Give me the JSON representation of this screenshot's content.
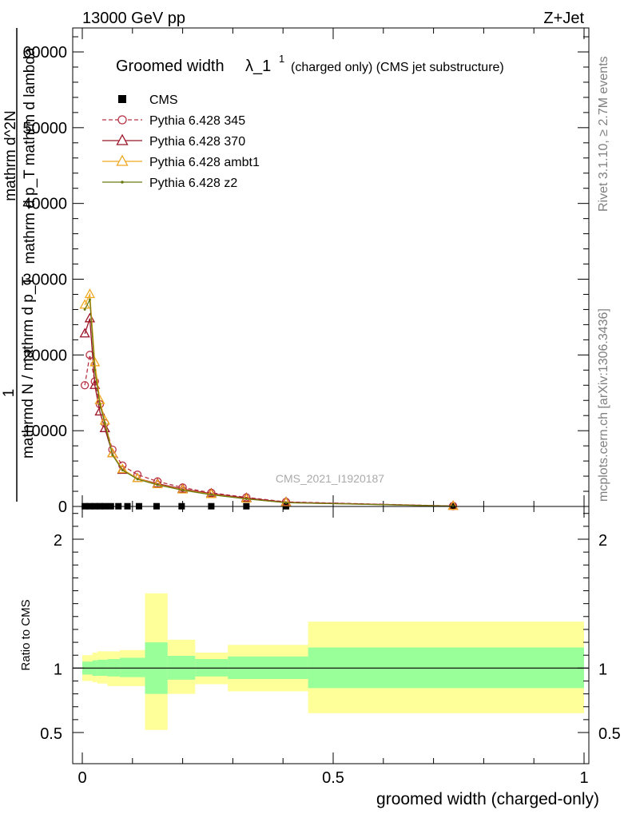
{
  "header": {
    "left": "13000 GeV pp",
    "right": "Z+Jet"
  },
  "side_labels": {
    "rivet": "Rivet 3.1.10, ≥ 2.7M events",
    "mcplots": "mcplots.cern.ch [arXiv:1306.3436]"
  },
  "watermark": "CMS_2021_I1920187",
  "chart_data": [
    {
      "type": "line",
      "title": "Groomed width",
      "title_symbol": "λ_1",
      "title_sup": "1",
      "title_suffix": "(charged only) (CMS jet substructure)",
      "ylabel_lines": [
        "1",
        "mathrmd N / mathrm d p_T",
        "mathrm d p_T mathrm d lambda",
        "mathrm d^2N"
      ],
      "ylabel_numerator": "1",
      "ylabel_denominator": "mathrmd N / mathrm d p_T",
      "ylabel_inner_numerator": "mathrm d^2N",
      "ylabel_inner_denominator": "mathrm d p_T mathrm d lambda",
      "xlim": [
        0,
        1
      ],
      "ylim": [
        0,
        60000
      ],
      "y_ticks": [
        0,
        10000,
        20000,
        30000,
        40000,
        50000,
        60000
      ],
      "y_tick_labels": [
        "0",
        "10000",
        "20000",
        "30000",
        "40000",
        "50000",
        "60000"
      ],
      "legend_position": "top-left",
      "series": [
        {
          "name": "CMS",
          "color": "#000000",
          "marker": "square",
          "x": [
            0.005,
            0.015,
            0.025,
            0.035,
            0.045,
            0.057,
            0.072,
            0.09,
            0.113,
            0.148,
            0.198,
            0.257,
            0.327,
            0.406,
            0.739
          ],
          "y": [
            30,
            30,
            30,
            30,
            30,
            30,
            30,
            30,
            30,
            30,
            30,
            30,
            30,
            30,
            30
          ]
        },
        {
          "name": "Pythia 6.428 345",
          "color": "#b83344",
          "marker": "circle",
          "dash": true,
          "x": [
            0.005,
            0.015,
            0.025,
            0.035,
            0.045,
            0.06,
            0.08,
            0.11,
            0.15,
            0.2,
            0.257,
            0.327,
            0.406,
            0.739
          ],
          "y": [
            16000,
            20000,
            16500,
            13500,
            11000,
            7500,
            5400,
            4200,
            3300,
            2500,
            1800,
            1200,
            600,
            60
          ]
        },
        {
          "name": "Pythia 6.428 370",
          "color": "#9b1426",
          "marker": "triangle",
          "x": [
            0.005,
            0.015,
            0.025,
            0.035,
            0.045,
            0.06,
            0.08,
            0.11,
            0.15,
            0.2,
            0.257,
            0.327,
            0.406,
            0.739
          ],
          "y": [
            22800,
            24800,
            16000,
            12500,
            10300,
            7000,
            4800,
            3700,
            3000,
            2300,
            1700,
            1100,
            550,
            50
          ]
        },
        {
          "name": "Pythia 6.428 ambt1",
          "color": "#f0a820",
          "marker": "triangle",
          "x": [
            0.005,
            0.015,
            0.025,
            0.035,
            0.045,
            0.06,
            0.08,
            0.11,
            0.15,
            0.2,
            0.257,
            0.327,
            0.406,
            0.739
          ],
          "y": [
            26600,
            28000,
            19000,
            14000,
            11300,
            7000,
            4900,
            3700,
            2900,
            2200,
            1600,
            1000,
            500,
            40
          ]
        },
        {
          "name": "Pythia 6.428 z2",
          "color": "#6b7a10",
          "marker": "dot",
          "x": [
            0.005,
            0.015,
            0.025,
            0.035,
            0.045,
            0.06,
            0.08,
            0.11,
            0.15,
            0.2,
            0.257,
            0.327,
            0.406,
            0.739
          ],
          "y": [
            26000,
            27300,
            18000,
            13500,
            11000,
            6800,
            4800,
            3600,
            2850,
            2150,
            1550,
            1000,
            500,
            40
          ]
        }
      ]
    },
    {
      "type": "area",
      "ylabel": "Ratio to CMS",
      "xlabel": "groomed width (charged-only)",
      "xlim": [
        0,
        1
      ],
      "ylim": [
        0.4,
        2.3
      ],
      "x_ticks": [
        0,
        0.5,
        1
      ],
      "x_tick_labels": [
        "0",
        "0.5",
        "1"
      ],
      "y_ticks": [
        0.5,
        1,
        2
      ],
      "y_tick_labels": [
        "0.5",
        "1",
        "2"
      ],
      "bin_edges": [
        0,
        0.02,
        0.03,
        0.05,
        0.075,
        0.125,
        0.17,
        0.225,
        0.29,
        0.45,
        1.0
      ],
      "inner_band": {
        "color": "#99ff99",
        "lo": [
          0.95,
          0.94,
          0.94,
          0.935,
          0.93,
          0.8,
          0.91,
          0.935,
          0.915,
          0.845
        ],
        "hi": [
          1.05,
          1.06,
          1.065,
          1.07,
          1.08,
          1.2,
          1.095,
          1.07,
          1.09,
          1.16
        ]
      },
      "outer_band": {
        "color": "#ffff99",
        "lo": [
          0.9,
          0.89,
          0.88,
          0.86,
          0.86,
          0.52,
          0.8,
          0.875,
          0.82,
          0.65
        ],
        "hi": [
          1.1,
          1.12,
          1.13,
          1.13,
          1.14,
          1.58,
          1.22,
          1.12,
          1.18,
          1.36
        ]
      },
      "reference_line": 1
    }
  ]
}
